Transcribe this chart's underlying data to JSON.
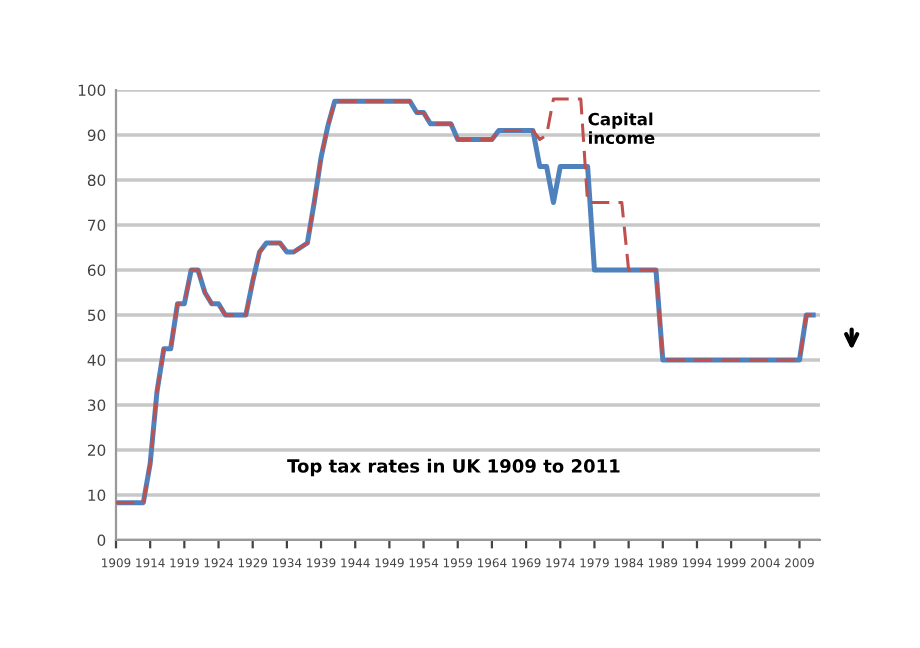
{
  "chart_data": {
    "type": "line",
    "title": "Top tax rates in UK 1909 to 2011",
    "x": [
      1909,
      1910,
      1911,
      1912,
      1913,
      1914,
      1915,
      1916,
      1917,
      1918,
      1919,
      1920,
      1921,
      1922,
      1923,
      1924,
      1925,
      1926,
      1927,
      1928,
      1929,
      1930,
      1931,
      1932,
      1933,
      1934,
      1935,
      1936,
      1937,
      1938,
      1939,
      1940,
      1941,
      1942,
      1943,
      1944,
      1945,
      1946,
      1947,
      1948,
      1949,
      1950,
      1951,
      1952,
      1953,
      1954,
      1955,
      1956,
      1957,
      1958,
      1959,
      1960,
      1961,
      1962,
      1963,
      1964,
      1965,
      1966,
      1967,
      1968,
      1969,
      1970,
      1971,
      1972,
      1973,
      1974,
      1975,
      1976,
      1977,
      1978,
      1979,
      1980,
      1981,
      1982,
      1983,
      1984,
      1985,
      1986,
      1987,
      1988,
      1989,
      1990,
      1991,
      1992,
      1993,
      1994,
      1995,
      1996,
      1997,
      1998,
      1999,
      2000,
      2001,
      2002,
      2003,
      2004,
      2005,
      2006,
      2007,
      2008,
      2009,
      2010,
      2011
    ],
    "series": [
      {
        "color": "#4f81bd",
        "line_style": "solid",
        "values": [
          8.3,
          8.3,
          8.3,
          8.3,
          8.3,
          17,
          33,
          42.5,
          42.5,
          52.5,
          52.5,
          60,
          60,
          55,
          52.5,
          52.5,
          50,
          50,
          50,
          50,
          57.5,
          64,
          66,
          66,
          66,
          64,
          64,
          65,
          66,
          75,
          85,
          92,
          97.5,
          97.5,
          97.5,
          97.5,
          97.5,
          97.5,
          97.5,
          97.5,
          97.5,
          97.5,
          97.5,
          97.5,
          95,
          95,
          92.5,
          92.5,
          92.5,
          92.5,
          89,
          89,
          89,
          89,
          89,
          89,
          91,
          91,
          91,
          91,
          91,
          91,
          83,
          83,
          75,
          83,
          83,
          83,
          83,
          83,
          60,
          60,
          60,
          60,
          60,
          60,
          60,
          60,
          60,
          60,
          40,
          40,
          40,
          40,
          40,
          40,
          40,
          40,
          40,
          40,
          40,
          40,
          40,
          40,
          40,
          40,
          40,
          40,
          40,
          40,
          40,
          50,
          50
        ]
      },
      {
        "name": "Capital income",
        "color": "#c0504d",
        "line_style": "dashed",
        "values": [
          8.3,
          8.3,
          8.3,
          8.3,
          8.3,
          17,
          33,
          42.5,
          42.5,
          52.5,
          52.5,
          60,
          60,
          55,
          52.5,
          52.5,
          50,
          50,
          50,
          50,
          57.5,
          64,
          66,
          66,
          66,
          64,
          64,
          65,
          66,
          75,
          85,
          92,
          97.5,
          97.5,
          97.5,
          97.5,
          97.5,
          97.5,
          97.5,
          97.5,
          97.5,
          97.5,
          97.5,
          97.5,
          95,
          95,
          92.5,
          92.5,
          92.5,
          92.5,
          89,
          89,
          89,
          89,
          89,
          89,
          91,
          91,
          91,
          91,
          91,
          91,
          89,
          90,
          98,
          98,
          98,
          98,
          98,
          75,
          75,
          75,
          75,
          75,
          75,
          60,
          60,
          60,
          60,
          60,
          40,
          40,
          40,
          40,
          40,
          40,
          40,
          40,
          40,
          40,
          40,
          40,
          40,
          40,
          40,
          40,
          40,
          40,
          40,
          40,
          40,
          50,
          50
        ]
      }
    ],
    "xlim": [
      1909,
      2012
    ],
    "xticks": [
      1909,
      1914,
      1919,
      1924,
      1929,
      1934,
      1939,
      1944,
      1949,
      1954,
      1959,
      1964,
      1969,
      1974,
      1979,
      1984,
      1989,
      1994,
      1999,
      2004,
      2009
    ],
    "ylim": [
      0,
      100
    ],
    "yticks": [
      0,
      10,
      20,
      30,
      40,
      50,
      60,
      70,
      80,
      90,
      100
    ],
    "grid": "y",
    "legend": false,
    "marker": "none"
  }
}
